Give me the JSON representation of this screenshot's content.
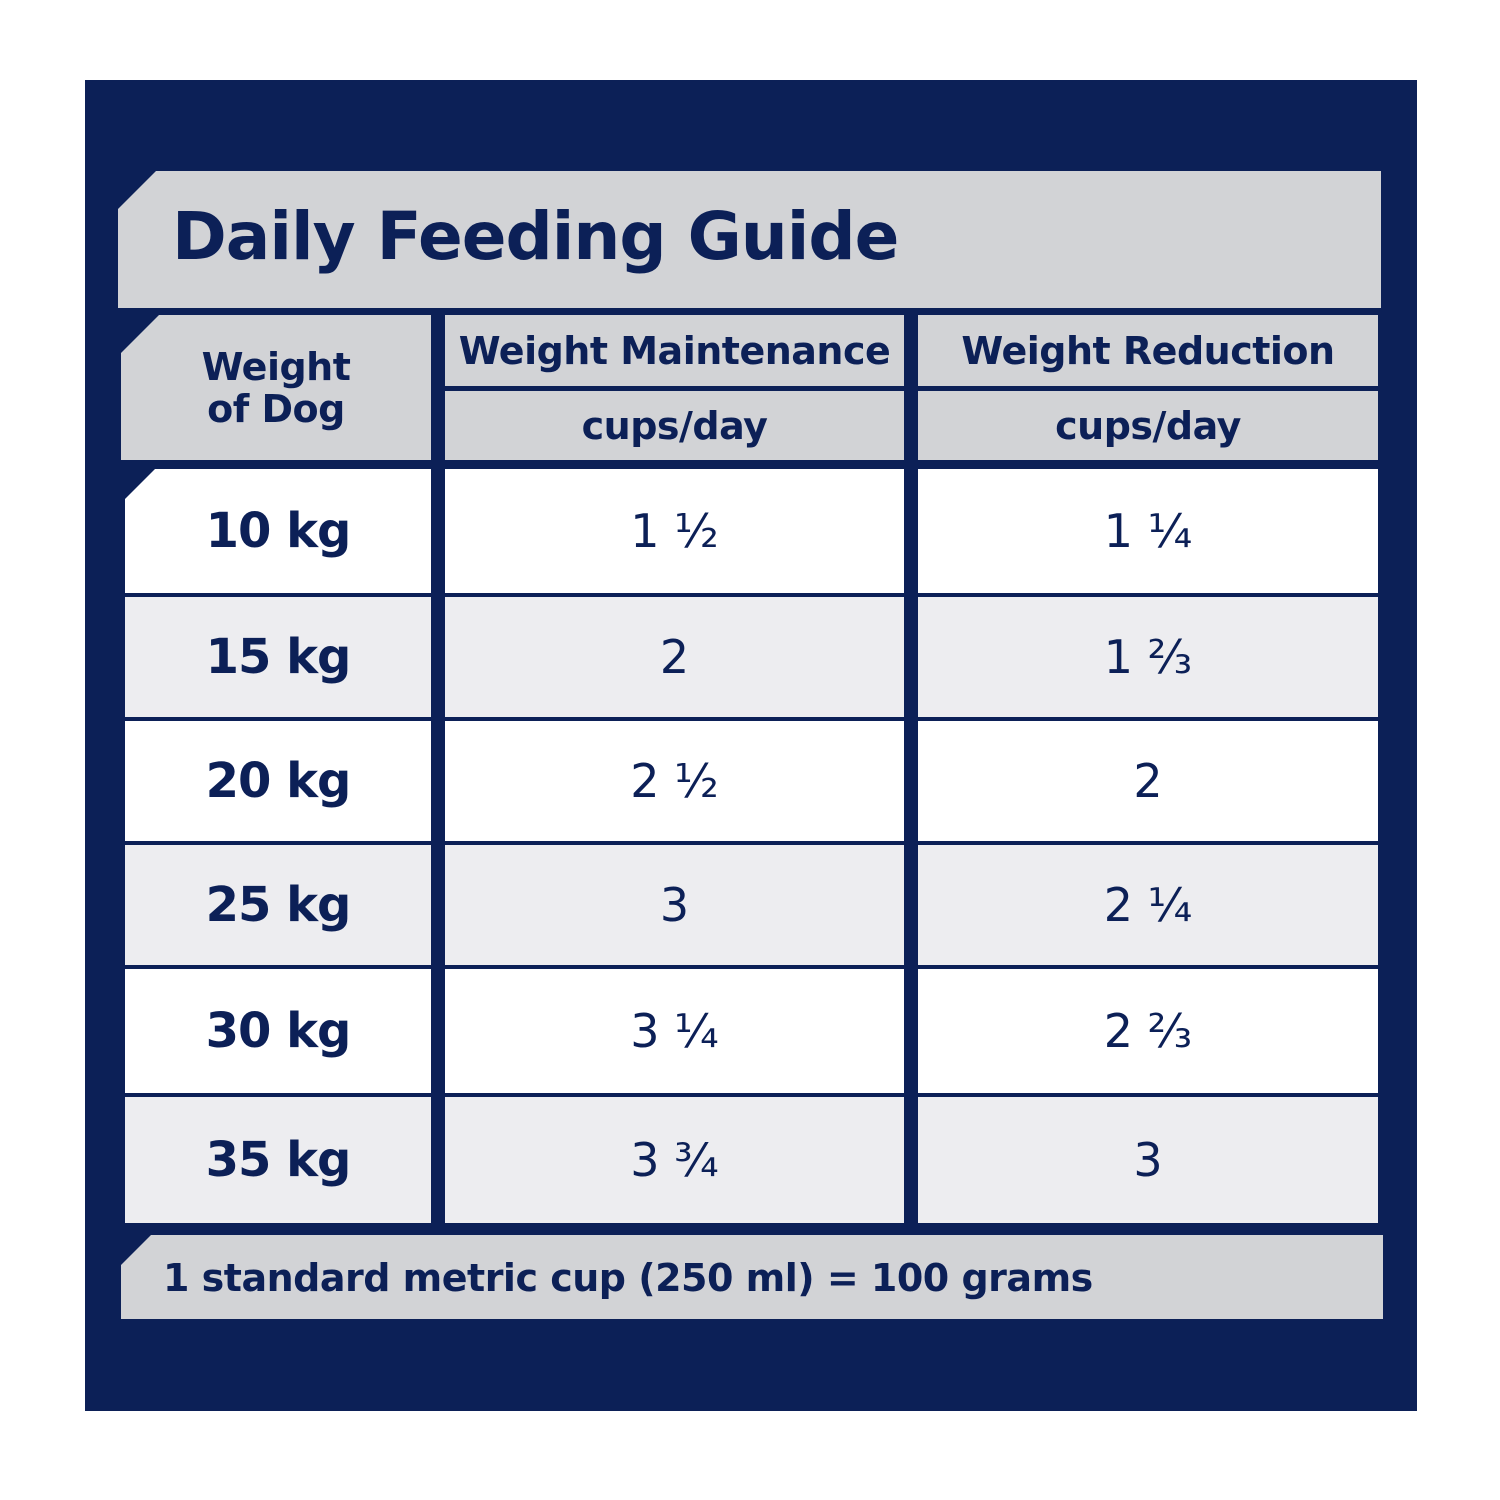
{
  "title": "Daily Feeding Guide",
  "header": {
    "weight_line1": "Weight",
    "weight_line2": "of Dog",
    "col_a": "Weight Maintenance",
    "col_b": "Weight Reduction",
    "unit_a": "cups/day",
    "unit_b": "cups/day"
  },
  "rows": [
    {
      "weight": "10 kg",
      "maintenance": "1 ½",
      "reduction": "1 ¼"
    },
    {
      "weight": "15 kg",
      "maintenance": "2",
      "reduction": "1 ⅔"
    },
    {
      "weight": "20 kg",
      "maintenance": "2 ½",
      "reduction": "2"
    },
    {
      "weight": "25 kg",
      "maintenance": "3",
      "reduction": "2 ¼"
    },
    {
      "weight": "30 kg",
      "maintenance": "3 ¼",
      "reduction": "2 ⅔"
    },
    {
      "weight": "35 kg",
      "maintenance": "3 ¾",
      "reduction": "3"
    }
  ],
  "footer": "1 standard metric cup (250 ml) = 100 grams",
  "colors": {
    "navy": "#0c2057",
    "band_grey": "#d2d3d6",
    "row_grey": "#ededf0",
    "row_white": "#ffffff"
  }
}
